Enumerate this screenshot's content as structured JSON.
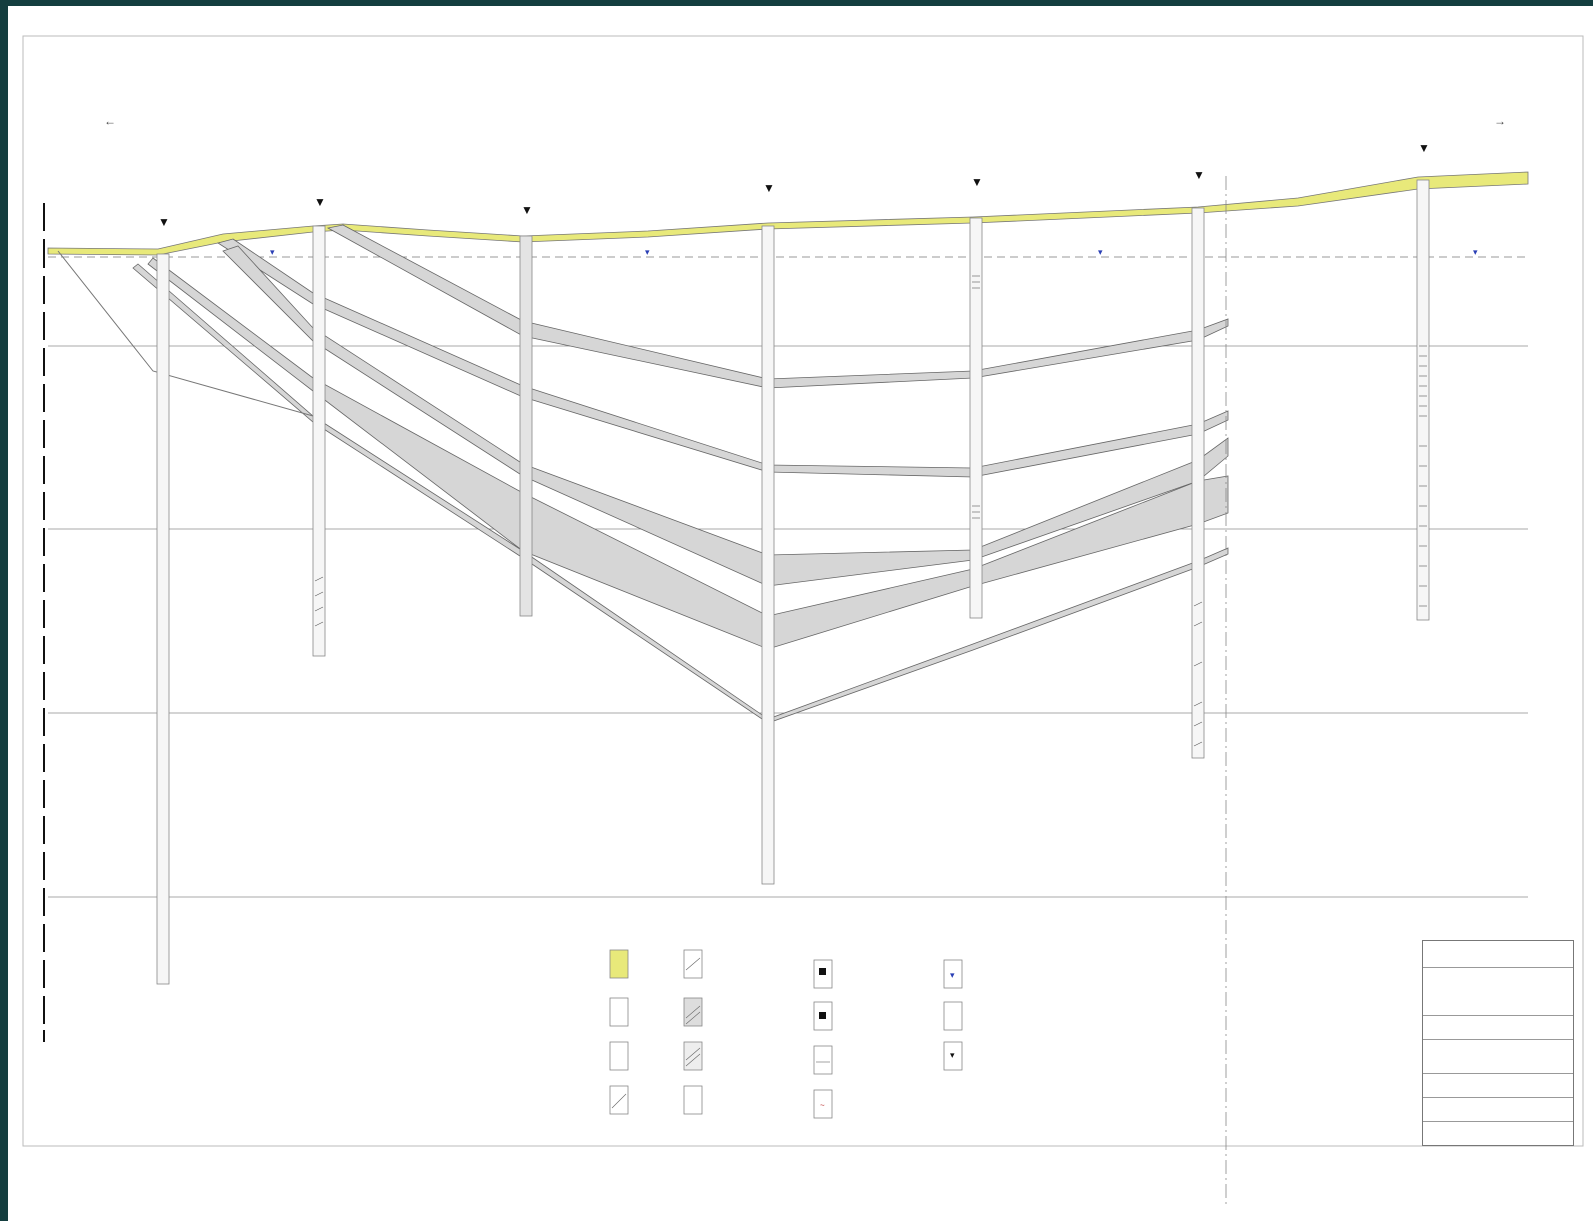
{
  "title": {
    "line1": "",
    "line2": "",
    "line3": ""
  },
  "directions": {
    "left": "",
    "right": ""
  },
  "legend": {
    "title": "",
    "items": []
  },
  "stamp": {
    "cells": []
  },
  "colors": {
    "surface_layer": "#e8e97a",
    "interlayer": "#d4d4d4",
    "water_level": "#2a3fb5",
    "frame_border": "#143e3f"
  }
}
